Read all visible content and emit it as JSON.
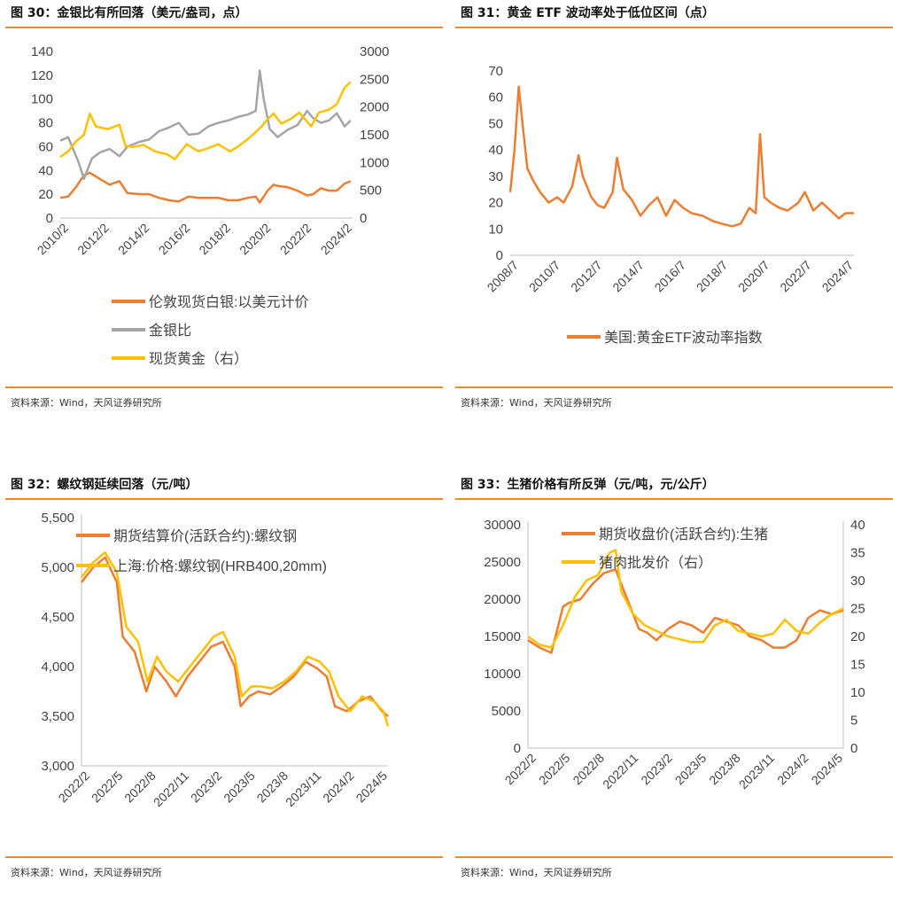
{
  "source_text": "资料来源：Wind，天风证券研究所",
  "colors": {
    "accent": "#f28a1e",
    "orange": "#ed7d31",
    "gray": "#a5a5a5",
    "yellow": "#ffc000"
  },
  "chart_data": [
    {
      "title": "图 30：金银比有所回落（美元/盎司，点）",
      "type": "line",
      "y_left": {
        "ylim": [
          0,
          140
        ],
        "ticks": [
          "0",
          "20",
          "40",
          "60",
          "80",
          "100",
          "120",
          "140"
        ]
      },
      "y_right": {
        "ylim": [
          0,
          3000
        ],
        "ticks": [
          "0",
          "500",
          "1000",
          "1500",
          "2000",
          "2500",
          "3000"
        ]
      },
      "x_tick_labels": [
        "2010/2",
        "2012/2",
        "2014/2",
        "2016/2",
        "2018/2",
        "2020/2",
        "2022/2",
        "2024/2"
      ],
      "x_range": [
        2010.1,
        2024.9
      ],
      "legend": [
        "伦敦现货白银:以美元计价",
        "金银比",
        "现货黄金（右）"
      ],
      "series": [
        {
          "name": "伦敦现货白银:以美元计价",
          "axis": "left",
          "color": "#ed7d31",
          "x": [
            2010.1,
            2010.5,
            2010.9,
            2011.3,
            2011.6,
            2012.1,
            2012.6,
            2013.1,
            2013.5,
            2014.1,
            2014.6,
            2015.1,
            2015.6,
            2016.1,
            2016.6,
            2017.1,
            2017.6,
            2018.1,
            2018.6,
            2019.1,
            2019.6,
            2020.0,
            2020.2,
            2020.6,
            2020.9,
            2021.1,
            2021.6,
            2022.1,
            2022.6,
            2022.9,
            2023.3,
            2023.7,
            2024.1,
            2024.5,
            2024.8
          ],
          "y": [
            17,
            18,
            26,
            36,
            38,
            33,
            28,
            31,
            21,
            20,
            20,
            17,
            15,
            14,
            18,
            17,
            17,
            17,
            15,
            15,
            17,
            18,
            13,
            23,
            28,
            27,
            26,
            23,
            19,
            20,
            25,
            23,
            23,
            29,
            31
          ]
        },
        {
          "name": "金银比",
          "axis": "left",
          "color": "#a5a5a5",
          "x": [
            2010.1,
            2010.5,
            2011.0,
            2011.3,
            2011.7,
            2012.1,
            2012.6,
            2013.1,
            2013.5,
            2014.1,
            2014.6,
            2015.1,
            2015.6,
            2016.1,
            2016.6,
            2017.1,
            2017.6,
            2018.1,
            2018.6,
            2019.1,
            2019.6,
            2020.0,
            2020.2,
            2020.4,
            2020.7,
            2021.1,
            2021.6,
            2022.1,
            2022.6,
            2022.9,
            2023.3,
            2023.7,
            2024.1,
            2024.5,
            2024.8
          ],
          "y": [
            65,
            68,
            48,
            33,
            50,
            55,
            58,
            52,
            60,
            64,
            66,
            73,
            76,
            80,
            70,
            71,
            77,
            80,
            82,
            85,
            87,
            90,
            124,
            100,
            75,
            68,
            74,
            78,
            90,
            84,
            80,
            82,
            88,
            77,
            82
          ]
        },
        {
          "name": "现货黄金（右）",
          "axis": "right",
          "color": "#ffc000",
          "x": [
            2010.1,
            2010.5,
            2010.9,
            2011.3,
            2011.6,
            2011.9,
            2012.5,
            2013.1,
            2013.4,
            2013.8,
            2014.3,
            2014.9,
            2015.5,
            2015.9,
            2016.5,
            2017.1,
            2017.6,
            2018.1,
            2018.7,
            2019.1,
            2019.6,
            2020.0,
            2020.3,
            2020.6,
            2020.9,
            2021.3,
            2021.8,
            2022.2,
            2022.8,
            2023.2,
            2023.7,
            2024.1,
            2024.5,
            2024.8
          ],
          "y": [
            1100,
            1200,
            1380,
            1500,
            1880,
            1650,
            1600,
            1680,
            1300,
            1280,
            1320,
            1200,
            1150,
            1060,
            1330,
            1200,
            1260,
            1330,
            1200,
            1290,
            1420,
            1550,
            1650,
            1780,
            1880,
            1700,
            1790,
            1900,
            1650,
            1900,
            1950,
            2050,
            2350,
            2450
          ]
        }
      ]
    },
    {
      "title": "图 31：黄金 ETF 波动率处于低位区间（点）",
      "type": "line",
      "y_left": {
        "ylim": [
          0,
          70
        ],
        "ticks": [
          "0",
          "10",
          "20",
          "30",
          "40",
          "50",
          "60",
          "70"
        ]
      },
      "x_tick_labels": [
        "2008/7",
        "2010/7",
        "2012/7",
        "2014/7",
        "2016/7",
        "2018/7",
        "2020/7",
        "2022/7",
        "2024/7"
      ],
      "x_range": [
        2008.5,
        2024.6
      ],
      "legend": [
        "美国:黄金ETF波动率指数"
      ],
      "series": [
        {
          "name": "美国:黄金ETF波动率指数",
          "axis": "left",
          "color": "#ed7d31",
          "x": [
            2008.5,
            2008.7,
            2008.9,
            2009.1,
            2009.3,
            2009.6,
            2009.9,
            2010.3,
            2010.7,
            2011.0,
            2011.4,
            2011.7,
            2011.9,
            2012.3,
            2012.6,
            2012.9,
            2013.3,
            2013.5,
            2013.8,
            2014.2,
            2014.6,
            2015.0,
            2015.4,
            2015.8,
            2016.2,
            2016.6,
            2017.0,
            2017.5,
            2018.0,
            2018.4,
            2018.9,
            2019.3,
            2019.7,
            2020.0,
            2020.2,
            2020.4,
            2020.7,
            2021.1,
            2021.5,
            2022.0,
            2022.3,
            2022.7,
            2023.1,
            2023.5,
            2023.9,
            2024.2,
            2024.6
          ],
          "y": [
            24,
            40,
            64,
            48,
            33,
            28,
            24,
            20,
            22,
            20,
            26,
            38,
            30,
            22,
            19,
            18,
            24,
            37,
            25,
            21,
            15,
            19,
            22,
            15,
            21,
            18,
            16,
            15,
            13,
            12,
            11,
            12,
            18,
            16,
            46,
            22,
            20,
            18,
            17,
            20,
            24,
            17,
            20,
            17,
            14,
            16,
            16
          ]
        }
      ]
    },
    {
      "title": "图 32：螺纹钢延续回落（元/吨）",
      "type": "line",
      "y_left": {
        "ylim": [
          3000,
          5500
        ],
        "ticks": [
          "3,000",
          "3,500",
          "4,000",
          "4,500",
          "5,000",
          "5,500"
        ]
      },
      "x_tick_labels": [
        "2022/2",
        "2022/5",
        "2022/8",
        "2022/11",
        "2023/2",
        "2023/5",
        "2023/8",
        "2023/11",
        "2024/2",
        "2024/5"
      ],
      "x_range": [
        2022.0,
        2024.6
      ],
      "legend": [
        "期货结算价(活跃合约):螺纹钢",
        "上海:价格:螺纹钢(HRB400,20mm)"
      ],
      "series": [
        {
          "name": "期货结算价(活跃合约):螺纹钢",
          "axis": "left",
          "color": "#ed7d31",
          "x": [
            2022.0,
            2022.1,
            2022.2,
            2022.3,
            2022.35,
            2022.45,
            2022.55,
            2022.62,
            2022.72,
            2022.8,
            2022.9,
            2023.0,
            2023.1,
            2023.2,
            2023.3,
            2023.35,
            2023.42,
            2023.5,
            2023.6,
            2023.7,
            2023.8,
            2023.9,
            2024.0,
            2024.08,
            2024.15,
            2024.25,
            2024.35,
            2024.45,
            2024.55,
            2024.6
          ],
          "y": [
            4850,
            5000,
            5100,
            4850,
            4300,
            4150,
            3750,
            4000,
            3850,
            3700,
            3900,
            4050,
            4200,
            4250,
            4000,
            3600,
            3700,
            3750,
            3720,
            3800,
            3900,
            4050,
            3980,
            3900,
            3600,
            3550,
            3650,
            3700,
            3550,
            3500
          ]
        },
        {
          "name": "上海:价格:螺纹钢(HRB400,20mm)",
          "axis": "left",
          "color": "#ffc000",
          "x": [
            2022.0,
            2022.1,
            2022.2,
            2022.3,
            2022.38,
            2022.48,
            2022.56,
            2022.64,
            2022.72,
            2022.82,
            2022.92,
            2023.02,
            2023.12,
            2023.2,
            2023.3,
            2023.36,
            2023.44,
            2023.52,
            2023.62,
            2023.72,
            2023.82,
            2023.92,
            2024.02,
            2024.1,
            2024.18,
            2024.28,
            2024.38,
            2024.48,
            2024.56,
            2024.6
          ],
          "y": [
            4900,
            5050,
            5150,
            4950,
            4400,
            4250,
            3850,
            4100,
            3950,
            3850,
            4000,
            4150,
            4300,
            4350,
            4100,
            3700,
            3800,
            3800,
            3780,
            3850,
            3950,
            4100,
            4050,
            3950,
            3700,
            3550,
            3700,
            3650,
            3550,
            3400
          ]
        }
      ]
    },
    {
      "title": "图 33：生猪价格有所反弹（元/吨，元/公斤）",
      "type": "line",
      "y_left": {
        "ylim": [
          0,
          30000
        ],
        "ticks": [
          "0",
          "5000",
          "10000",
          "15000",
          "20000",
          "25000",
          "30000"
        ]
      },
      "y_right": {
        "ylim": [
          0,
          40
        ],
        "ticks": [
          "0",
          "5",
          "10",
          "15",
          "20",
          "25",
          "30",
          "35",
          "40"
        ]
      },
      "x_tick_labels": [
        "2022/2",
        "2022/5",
        "2022/8",
        "2022/11",
        "2023/2",
        "2023/5",
        "2023/8",
        "2023/11",
        "2024/2",
        "2024/5"
      ],
      "x_range": [
        2022.0,
        2024.7
      ],
      "legend": [
        "期货收盘价(活跃合约):生猪",
        "猪肉批发价（右）"
      ],
      "series": [
        {
          "name": "期货收盘价(活跃合约):生猪",
          "axis": "left",
          "color": "#ed7d31",
          "x": [
            2022.0,
            2022.1,
            2022.2,
            2022.3,
            2022.35,
            2022.45,
            2022.55,
            2022.65,
            2022.75,
            2022.85,
            2022.95,
            2023.02,
            2023.1,
            2023.2,
            2023.3,
            2023.4,
            2023.5,
            2023.6,
            2023.7,
            2023.8,
            2023.9,
            2024.0,
            2024.1,
            2024.2,
            2024.3,
            2024.4,
            2024.5,
            2024.6,
            2024.7
          ],
          "y": [
            14500,
            13500,
            12800,
            19000,
            19500,
            20000,
            22000,
            23500,
            24000,
            20000,
            16000,
            15500,
            14500,
            16000,
            17000,
            16500,
            15500,
            17500,
            17000,
            16500,
            15000,
            14500,
            13500,
            13500,
            14500,
            17500,
            18500,
            18000,
            18500
          ]
        },
        {
          "name": "猪肉批发价（右）",
          "axis": "right",
          "color": "#ffc000",
          "x": [
            2022.0,
            2022.1,
            2022.2,
            2022.3,
            2022.4,
            2022.5,
            2022.6,
            2022.7,
            2022.75,
            2022.8,
            2022.9,
            2023.0,
            2023.1,
            2023.2,
            2023.3,
            2023.4,
            2023.5,
            2023.6,
            2023.7,
            2023.8,
            2023.9,
            2024.0,
            2024.1,
            2024.2,
            2024.3,
            2024.4,
            2024.5,
            2024.6,
            2024.7
          ],
          "y": [
            20,
            18.5,
            18,
            22,
            27,
            30,
            31,
            35,
            35.5,
            28,
            24,
            22,
            21,
            20,
            19.5,
            19,
            19,
            22,
            23,
            21,
            20.5,
            20,
            20.5,
            23,
            21,
            20.5,
            22.5,
            24,
            25
          ]
        }
      ]
    }
  ]
}
